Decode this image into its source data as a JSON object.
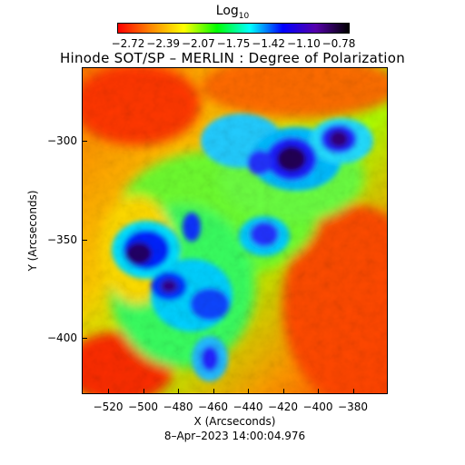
{
  "colorbar": {
    "title_base": "Log",
    "title_sub": "10",
    "ticks": [
      "−2.72",
      "−2.39",
      "−2.07",
      "−1.75",
      "−1.42",
      "−1.10",
      "−0.78"
    ]
  },
  "title": "Hinode SOT/SP – MERLIN : Degree of Polarization",
  "axes": {
    "xlabel": "X (Arcseconds)",
    "ylabel": "Y (Arcseconds)",
    "xticks": [
      "−520",
      "−500",
      "−480",
      "−460",
      "−440",
      "−420",
      "−400",
      "−380"
    ],
    "yticks": [
      "−300",
      "−350",
      "−400"
    ]
  },
  "timestamp": "8–Apr–2023 14:00:04.976",
  "colors": {
    "colormap": [
      "#ff0000",
      "#ff8800",
      "#ffff00",
      "#00ff00",
      "#00ffff",
      "#0000ff",
      "#5500aa",
      "#000000"
    ]
  }
}
